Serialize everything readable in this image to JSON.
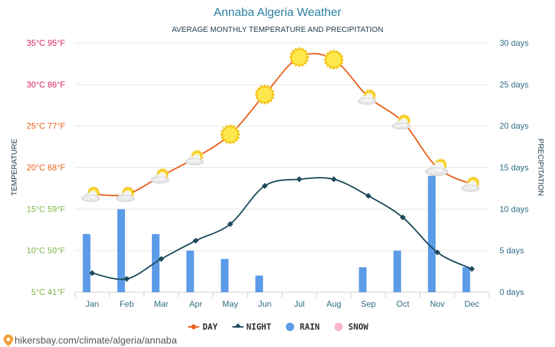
{
  "colors": {
    "day": "#e8601c",
    "night": "#1d4a5c",
    "rain": "#5b9be8",
    "snow": "#f7b6c8",
    "grid": "#e6e6e6",
    "temp_hot": "#d81b60",
    "temp_warm": "#e8601c",
    "temp_mild": "#7cb342",
    "precip_axis": "#2e6b86"
  },
  "chart_data": {
    "type": "line",
    "title": "Annaba Algeria Weather",
    "subtitle": "AVERAGE MONTHLY TEMPERATURE AND PRECIPITATION",
    "ylabel_left": "TEMPERATURE",
    "ylabel_right": "PRECIPITATION",
    "categories": [
      "Jan",
      "Feb",
      "Mar",
      "Apr",
      "May",
      "Jun",
      "Jul",
      "Aug",
      "Sep",
      "Oct",
      "Nov",
      "Dec"
    ],
    "y_left": {
      "min": 5,
      "max": 35,
      "ticks": [
        {
          "value": 35,
          "label": "35°C 95°F"
        },
        {
          "value": 30,
          "label": "30°C 86°F"
        },
        {
          "value": 25,
          "label": "25°C 77°F"
        },
        {
          "value": 20,
          "label": "20°C 68°F"
        },
        {
          "value": 15,
          "label": "15°C 59°F"
        },
        {
          "value": 10,
          "label": "10°C 50°F"
        },
        {
          "value": 5,
          "label": "5°C 41°F"
        }
      ]
    },
    "y_right": {
      "min": 0,
      "max": 30,
      "unit": "days",
      "ticks": [
        {
          "value": 30,
          "label": "30 days"
        },
        {
          "value": 25,
          "label": "25 days"
        },
        {
          "value": 20,
          "label": "20 days"
        },
        {
          "value": 15,
          "label": "15 days"
        },
        {
          "value": 10,
          "label": "10 days"
        },
        {
          "value": 5,
          "label": "5 days"
        },
        {
          "value": 0,
          "label": "0 days"
        }
      ]
    },
    "grid": true,
    "legend_position": "bottom",
    "series": [
      {
        "name": "DAY",
        "type": "line",
        "values": [
          16.8,
          16.8,
          19,
          21.2,
          24,
          28.8,
          33.3,
          33,
          28.5,
          25.5,
          20,
          18
        ]
      },
      {
        "name": "NIGHT",
        "type": "line",
        "values": [
          7.3,
          6.6,
          9,
          11.2,
          13.2,
          17.8,
          18.6,
          18.6,
          16.6,
          14,
          9.8,
          7.8
        ]
      },
      {
        "name": "RAIN",
        "type": "bar",
        "values": [
          7,
          10,
          7,
          5,
          4,
          2,
          0,
          0,
          3,
          5,
          14,
          3
        ]
      },
      {
        "name": "SNOW",
        "type": "bar",
        "values": [
          0,
          0,
          0,
          0,
          0,
          0,
          0,
          0,
          0,
          0,
          0,
          0
        ]
      }
    ],
    "day_icons": [
      "partly-cloudy-icon",
      "partly-cloudy-icon",
      "partly-cloudy-icon",
      "partly-cloudy-icon",
      "sun-icon",
      "sun-icon",
      "sun-icon",
      "sun-icon",
      "partly-cloudy-icon",
      "partly-cloudy-icon",
      "cloudy-sun-icon",
      "partly-cloudy-icon"
    ]
  },
  "legend": {
    "day": "DAY",
    "night": "NIGHT",
    "rain": "RAIN",
    "snow": "SNOW"
  },
  "footer": {
    "source": "hikersbay.com/climate/algeria/annaba",
    "icon": "location-pin-icon"
  }
}
